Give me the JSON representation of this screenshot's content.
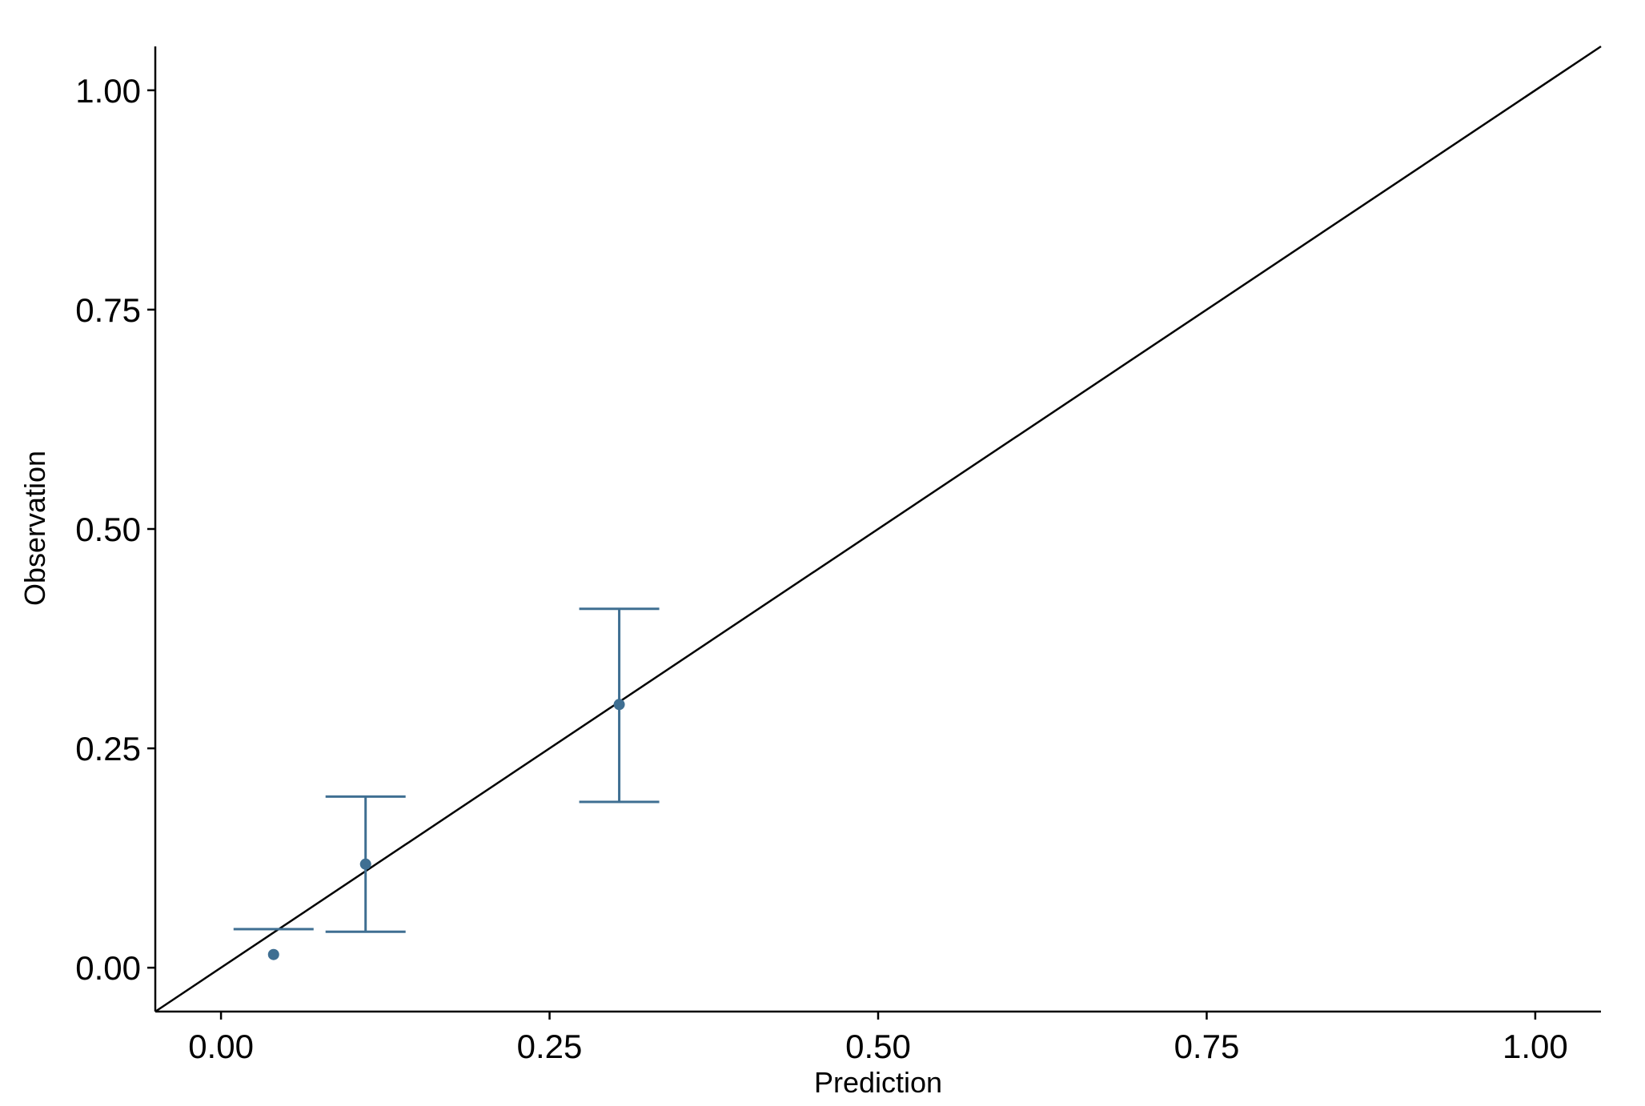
{
  "chart_data": {
    "type": "scatter",
    "x_label": "Prediction",
    "y_label": "Observation",
    "series": [
      {
        "color": "#3f6f92",
        "x": [
          0.04,
          0.11,
          0.303
        ],
        "y": [
          0.015,
          0.118,
          0.3
        ],
        "lower": [
          null,
          0.041,
          0.189
        ],
        "upper": [
          0.044,
          0.195,
          0.409
        ]
      }
    ],
    "xlim": [
      -0.05,
      1.05
    ],
    "ylim": [
      -0.05,
      1.05
    ],
    "xticks": [
      {
        "value": 0,
        "label": "0.00"
      },
      {
        "value": 0.25,
        "label": "0.25"
      },
      {
        "value": 0.5,
        "label": "0.50"
      },
      {
        "value": 0.75,
        "label": "0.75"
      },
      {
        "value": 1,
        "label": "1.00"
      }
    ],
    "yticks": [
      {
        "value": 0,
        "label": "0.00"
      },
      {
        "value": 0.25,
        "label": "0.25"
      },
      {
        "value": 0.5,
        "label": "0.50"
      },
      {
        "value": 0.75,
        "label": "0.75"
      },
      {
        "value": 1,
        "label": "1.00"
      }
    ],
    "diagonal": true,
    "grid": false
  }
}
